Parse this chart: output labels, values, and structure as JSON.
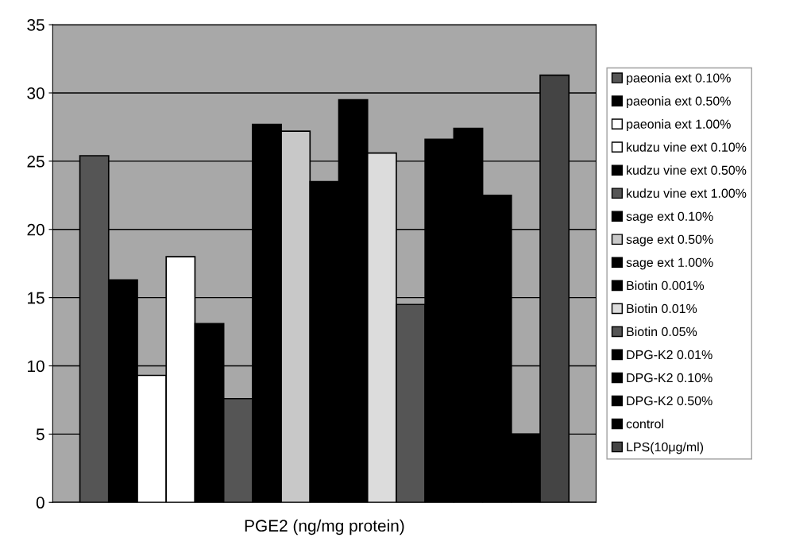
{
  "chart_data": {
    "type": "bar",
    "xlabel": "PGE2 (ng/mg protein)",
    "categories": [
      null
    ],
    "ylim": [
      0,
      35
    ],
    "yticks": [
      0,
      5,
      10,
      15,
      20,
      25,
      30,
      35
    ],
    "grid": "y",
    "legend": "right",
    "series": [
      {
        "name": "paeonia ext 0.10%",
        "color": "#555555",
        "values": [
          25.4
        ]
      },
      {
        "name": "paeonia ext 0.50%",
        "color": "#000000",
        "values": [
          16.3
        ]
      },
      {
        "name": "paeonia ext 1.00%",
        "color": "#ffffff",
        "values": [
          9.3
        ]
      },
      {
        "name": "kudzu vine ext 0.10%",
        "color": "#ffffff",
        "values": [
          18.0
        ]
      },
      {
        "name": "kudzu vine ext 0.50%",
        "color": "#000000",
        "values": [
          13.1
        ]
      },
      {
        "name": "kudzu vine ext 1.00%",
        "color": "#555555",
        "values": [
          7.6
        ]
      },
      {
        "name": "sage ext 0.10%",
        "color": "#000000",
        "values": [
          27.7
        ]
      },
      {
        "name": "sage ext 0.50%",
        "color": "#c8c8c8",
        "values": [
          27.2
        ]
      },
      {
        "name": "sage ext 1.00%",
        "color": "#000000",
        "values": [
          23.5
        ]
      },
      {
        "name": "Biotin 0.001%",
        "color": "#000000",
        "values": [
          29.5
        ]
      },
      {
        "name": "Biotin 0.01%",
        "color": "#dcdcdc",
        "values": [
          25.6
        ]
      },
      {
        "name": "Biotin 0.05%",
        "color": "#555555",
        "values": [
          14.5
        ]
      },
      {
        "name": "DPG-K2 0.01%",
        "color": "#000000",
        "values": [
          26.6
        ]
      },
      {
        "name": "DPG-K2 0.10%",
        "color": "#000000",
        "values": [
          27.4
        ]
      },
      {
        "name": "DPG-K2 0.50%",
        "color": "#000000",
        "values": [
          22.5
        ]
      },
      {
        "name": "control",
        "color": "#000000",
        "values": [
          5.0
        ]
      },
      {
        "name": "LPS(10μg/ml)",
        "color": "#444444",
        "values": [
          31.3
        ]
      }
    ]
  }
}
